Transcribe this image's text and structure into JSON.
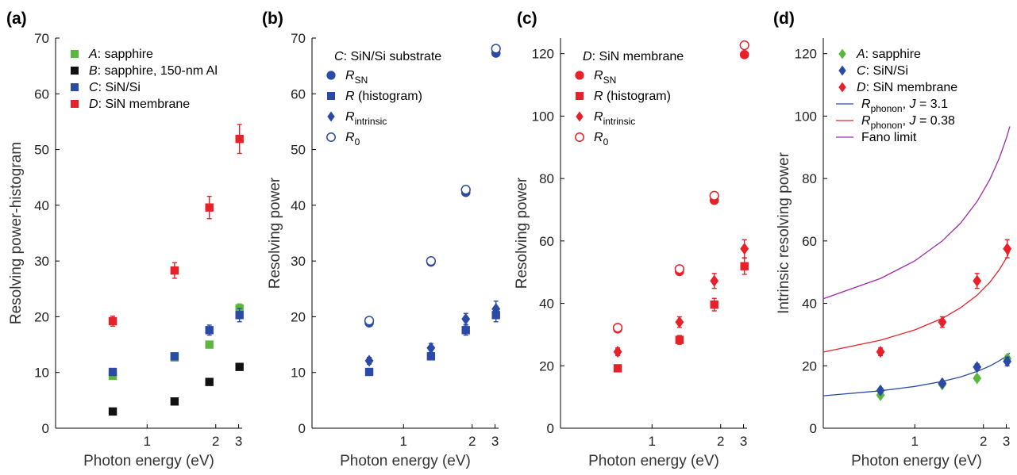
{
  "colors": {
    "green": "#5cb83c",
    "black": "#111111",
    "blue": "#2b4aa5",
    "red": "#e8202a",
    "blue_line": "#2b4aa5",
    "red_line": "#e8202a",
    "purple_line": "#a02aa8"
  },
  "chart_data": [
    {
      "panel_label": "(a)",
      "type": "scatter",
      "xlabel": "Photon energy (eV)",
      "ylabel": "Resolving power-histogram",
      "xlim": [
        0.6,
        3.25
      ],
      "ylim": [
        0,
        70
      ],
      "xticks": [
        1,
        2,
        3
      ],
      "yticks": [
        0,
        10,
        20,
        30,
        40,
        50,
        60,
        70
      ],
      "x_scale": "reciprocal",
      "grid": false,
      "legend": {
        "position": "top-left",
        "items": [
          {
            "letter": "A",
            "rest": ": sapphire",
            "color": "green",
            "marker": "square"
          },
          {
            "letter": "B",
            "rest": ": sapphire, 150-nm Al",
            "color": "black",
            "marker": "square"
          },
          {
            "letter": "C",
            "rest": ": SiN/Si",
            "color": "blue",
            "marker": "square"
          },
          {
            "letter": "D",
            "rest": ": SiN membrane",
            "color": "red",
            "marker": "square"
          }
        ]
      },
      "series": [
        {
          "name": "A: sapphire",
          "color": "green",
          "marker": "square",
          "x": [
            0.8,
            1.25,
            1.83,
            3.06
          ],
          "y": [
            9.4,
            12.7,
            15.0,
            21.5
          ],
          "err": [
            0.5,
            0.5,
            0.6,
            0.8
          ]
        },
        {
          "name": "B: sapphire, 150-nm Al",
          "color": "black",
          "marker": "square",
          "x": [
            0.8,
            1.25,
            1.83,
            3.06
          ],
          "y": [
            3.0,
            4.8,
            8.3,
            11.0
          ],
          "err": [
            0,
            0,
            0,
            0.5
          ]
        },
        {
          "name": "C: SiN/Si",
          "color": "blue",
          "marker": "square",
          "x": [
            0.8,
            1.25,
            1.83,
            3.06
          ],
          "y": [
            10.1,
            12.9,
            17.6,
            20.3
          ],
          "err": [
            0.5,
            0.6,
            0.9,
            1.2
          ]
        },
        {
          "name": "D: SiN membrane",
          "color": "red",
          "marker": "square",
          "x": [
            0.8,
            1.25,
            1.83,
            3.06
          ],
          "y": [
            19.2,
            28.3,
            39.6,
            51.9
          ],
          "err": [
            0.9,
            1.4,
            2.0,
            2.6
          ]
        }
      ]
    },
    {
      "panel_label": "(b)",
      "type": "scatter",
      "xlabel": "Photon energy (eV)",
      "ylabel": "Resolving power",
      "xlim": [
        0.6,
        3.25
      ],
      "ylim": [
        0,
        70
      ],
      "xticks": [
        1,
        2,
        3
      ],
      "yticks": [
        0,
        10,
        20,
        30,
        40,
        50,
        60,
        70
      ],
      "x_scale": "reciprocal",
      "grid": false,
      "legend": {
        "position": "top-left",
        "header": {
          "letter": "C",
          "rest": ": SiN/Si substrate"
        },
        "items": [
          {
            "base": "R",
            "sub": "SN",
            "rest": "",
            "color": "blue",
            "marker": "circle"
          },
          {
            "base": "R",
            "sub": "",
            "rest": " (histogram)",
            "color": "blue",
            "marker": "square"
          },
          {
            "base": "R",
            "sub": "intrinsic",
            "rest": "",
            "color": "blue",
            "marker": "diamond"
          },
          {
            "base": "R",
            "sub": "0",
            "rest": "",
            "color": "blue",
            "marker": "open-circle"
          }
        ]
      },
      "series": [
        {
          "name": "R_SN",
          "color": "blue",
          "marker": "circle",
          "x": [
            0.8,
            1.25,
            1.83,
            3.06
          ],
          "y": [
            18.9,
            29.8,
            42.3,
            67.3
          ],
          "err": [
            0,
            0,
            0,
            0
          ]
        },
        {
          "name": "R (histogram)",
          "color": "blue",
          "marker": "square",
          "x": [
            0.8,
            1.25,
            1.83,
            3.06
          ],
          "y": [
            10.1,
            12.9,
            17.6,
            20.3
          ],
          "err": [
            0.5,
            0.6,
            0.9,
            1.2
          ]
        },
        {
          "name": "R_intrinsic",
          "color": "blue",
          "marker": "diamond",
          "x": [
            0.8,
            1.25,
            1.83,
            3.06
          ],
          "y": [
            12.1,
            14.4,
            19.6,
            21.4
          ],
          "err": [
            0.6,
            0.8,
            1.0,
            1.4
          ]
        },
        {
          "name": "R_0",
          "color": "blue",
          "marker": "open-circle",
          "x": [
            0.8,
            1.25,
            1.83,
            3.06
          ],
          "y": [
            19.3,
            30.0,
            42.8,
            68.1
          ],
          "err": [
            0,
            0,
            0,
            0
          ]
        }
      ]
    },
    {
      "panel_label": "(c)",
      "type": "scatter",
      "xlabel": "Photon energy (eV)",
      "ylabel": "Resolving power",
      "xlim": [
        0.6,
        3.25
      ],
      "ylim": [
        0,
        125
      ],
      "xticks": [
        1,
        2,
        3
      ],
      "yticks": [
        0,
        20,
        40,
        60,
        80,
        100,
        120
      ],
      "x_scale": "reciprocal",
      "grid": false,
      "legend": {
        "position": "top-left",
        "header": {
          "letter": "D",
          "rest": ": SiN membrane"
        },
        "items": [
          {
            "base": "R",
            "sub": "SN",
            "rest": "",
            "color": "red",
            "marker": "circle"
          },
          {
            "base": "R",
            "sub": "",
            "rest": " (histogram)",
            "color": "red",
            "marker": "square"
          },
          {
            "base": "R",
            "sub": "intrinsic",
            "rest": "",
            "color": "red",
            "marker": "diamond"
          },
          {
            "base": "R",
            "sub": "0",
            "rest": "",
            "color": "red",
            "marker": "open-circle"
          }
        ]
      },
      "series": [
        {
          "name": "R_SN",
          "color": "red",
          "marker": "circle",
          "x": [
            0.8,
            1.25,
            1.83,
            3.06
          ],
          "y": [
            31.8,
            50.2,
            73.0,
            119.7
          ],
          "err": [
            0,
            0,
            0,
            0
          ]
        },
        {
          "name": "R (histogram)",
          "color": "red",
          "marker": "square",
          "x": [
            0.8,
            1.25,
            1.83,
            3.06
          ],
          "y": [
            19.2,
            28.3,
            39.6,
            51.9
          ],
          "err": [
            0.9,
            1.4,
            2.0,
            2.6
          ]
        },
        {
          "name": "R_intrinsic",
          "color": "red",
          "marker": "diamond",
          "x": [
            0.8,
            1.25,
            1.83,
            3.06
          ],
          "y": [
            24.5,
            34.0,
            47.2,
            57.5
          ],
          "err": [
            1.2,
            1.7,
            2.4,
            2.9
          ]
        },
        {
          "name": "R_0",
          "color": "red",
          "marker": "open-circle",
          "x": [
            0.8,
            1.25,
            1.83,
            3.06
          ],
          "y": [
            32.2,
            51.0,
            74.5,
            122.7
          ],
          "err": [
            0,
            0,
            0,
            0
          ]
        }
      ]
    },
    {
      "panel_label": "(d)",
      "type": "scatter",
      "xlabel": "Photon energy (eV)",
      "ylabel": "Intrinsic resolving power",
      "xlim": [
        0.6,
        3.25
      ],
      "ylim": [
        0,
        125
      ],
      "xticks": [
        1,
        2,
        3
      ],
      "yticks": [
        0,
        20,
        40,
        60,
        80,
        100,
        120
      ],
      "x_scale": "reciprocal",
      "grid": false,
      "legend": {
        "position": "top-left",
        "items": [
          {
            "letter": "A",
            "rest": ": sapphire",
            "color": "green",
            "marker": "diamond"
          },
          {
            "letter": "C",
            "rest": ": SiN/Si",
            "color": "blue",
            "marker": "diamond"
          },
          {
            "letter": "D",
            "rest": ": SiN membrane",
            "color": "red",
            "marker": "diamond"
          },
          {
            "base": "R",
            "sub": "phonon",
            "rest": ", ",
            "param": "J",
            "value": " = 3.1",
            "color": "blue_line",
            "marker": "line"
          },
          {
            "base": "R",
            "sub": "phonon",
            "rest": ", ",
            "param": "J",
            "value": " = 0.38",
            "color": "red_line",
            "marker": "line"
          },
          {
            "text": "Fano limit",
            "color": "purple_line",
            "marker": "line"
          }
        ]
      },
      "series": [
        {
          "name": "A: sapphire",
          "color": "green",
          "marker": "diamond",
          "x": [
            0.8,
            1.25,
            1.83,
            3.06
          ],
          "y": [
            10.6,
            14.0,
            16.0,
            22.3
          ],
          "err": [
            0.5,
            0.6,
            0.8,
            1.0
          ]
        },
        {
          "name": "C: SiN/Si",
          "color": "blue",
          "marker": "diamond",
          "x": [
            0.8,
            1.25,
            1.83,
            3.06
          ],
          "y": [
            12.1,
            14.4,
            19.6,
            21.4
          ],
          "err": [
            0.6,
            0.8,
            1.0,
            1.4
          ]
        },
        {
          "name": "D: SiN membrane",
          "color": "red",
          "marker": "diamond",
          "x": [
            0.8,
            1.25,
            1.83,
            3.06
          ],
          "y": [
            24.5,
            34.0,
            47.2,
            57.5
          ],
          "err": [
            1.2,
            1.7,
            2.4,
            2.9
          ]
        }
      ],
      "curves": [
        {
          "name": "R_phonon, J = 3.1",
          "color": "blue_line",
          "x": [
            0.6,
            0.8,
            1.0,
            1.25,
            1.5,
            1.83,
            2.2,
            2.6,
            3.0,
            3.25
          ],
          "y": [
            10.4,
            12.0,
            13.4,
            15.0,
            16.4,
            18.2,
            19.9,
            21.6,
            23.1,
            24.1
          ]
        },
        {
          "name": "R_phonon, J = 0.38",
          "color": "red_line",
          "x": [
            0.6,
            0.8,
            1.0,
            1.25,
            1.5,
            1.83,
            2.2,
            2.6,
            3.0,
            3.25
          ],
          "y": [
            24.4,
            28.2,
            31.5,
            35.2,
            38.6,
            42.6,
            46.7,
            50.8,
            54.5,
            56.8
          ]
        },
        {
          "name": "Fano limit",
          "color": "purple_line",
          "x": [
            0.6,
            0.8,
            1.0,
            1.25,
            1.5,
            1.83,
            2.2,
            2.6,
            3.0,
            3.25
          ],
          "y": [
            41.5,
            48.0,
            53.6,
            60.0,
            65.7,
            72.6,
            79.6,
            86.5,
            92.9,
            96.7
          ]
        }
      ]
    }
  ]
}
